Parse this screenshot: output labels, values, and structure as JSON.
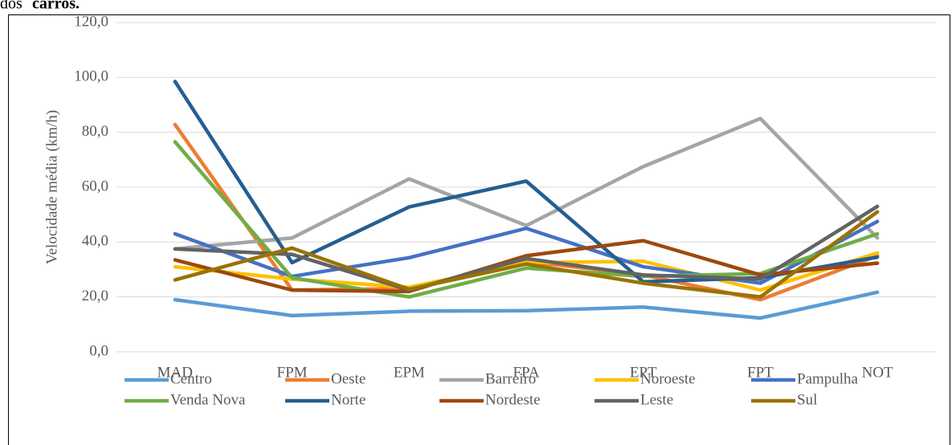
{
  "caption": [
    "dos",
    "carros."
  ],
  "chart_data": {
    "type": "line",
    "y_label": "Velocidade média (km/h)",
    "categories": [
      "MAD",
      "FPM",
      "EPM",
      "FPA",
      "EPT",
      "FPT",
      "NOT"
    ],
    "ylim": [
      0,
      120
    ],
    "yticks": [
      {
        "value": 0,
        "label": "0,0"
      },
      {
        "value": 20,
        "label": "20,0"
      },
      {
        "value": 40,
        "label": "40,0"
      },
      {
        "value": 60,
        "label": "60,0"
      },
      {
        "value": 80,
        "label": "80,0"
      },
      {
        "value": 100,
        "label": "100,0"
      },
      {
        "value": 120,
        "label": "120,0"
      }
    ],
    "grid": true,
    "legend": "bottom",
    "series": [
      {
        "name": "Centro",
        "color": "#5b9bd5",
        "values": [
          19.0,
          13.2,
          14.8,
          15.0,
          16.3,
          12.3,
          21.7
        ]
      },
      {
        "name": "Oeste",
        "color": "#ed7d31",
        "values": [
          82.8,
          22.5,
          23.0,
          33.0,
          28.0,
          19.0,
          35.0
        ]
      },
      {
        "name": "Barreiro",
        "color": "#a5a5a5",
        "values": [
          37.5,
          41.5,
          63.0,
          46.0,
          67.5,
          85.0,
          41.5
        ]
      },
      {
        "name": "Noroeste",
        "color": "#ffc000",
        "values": [
          31.0,
          26.5,
          23.5,
          32.5,
          33.0,
          22.5,
          36.0
        ]
      },
      {
        "name": "Pampulha",
        "color": "#4472c4",
        "values": [
          43.0,
          27.5,
          34.3,
          45.0,
          31.0,
          25.0,
          47.5
        ]
      },
      {
        "name": "Venda Nova",
        "color": "#70ad47",
        "values": [
          76.5,
          27.0,
          20.0,
          30.5,
          27.5,
          28.5,
          43.0
        ]
      },
      {
        "name": "Norte",
        "color": "#255e91",
        "values": [
          98.5,
          32.5,
          52.8,
          62.2,
          25.5,
          27.0,
          34.5
        ]
      },
      {
        "name": "Nordeste",
        "color": "#9e480e",
        "values": [
          33.5,
          22.5,
          22.0,
          35.0,
          40.5,
          28.0,
          32.3
        ]
      },
      {
        "name": "Leste",
        "color": "#636363",
        "values": [
          37.5,
          35.5,
          22.5,
          34.0,
          28.0,
          26.5,
          53.0
        ]
      },
      {
        "name": "Sul",
        "color": "#997300",
        "values": [
          26.2,
          37.8,
          22.8,
          32.0,
          25.0,
          20.0,
          51.0
        ]
      }
    ]
  }
}
